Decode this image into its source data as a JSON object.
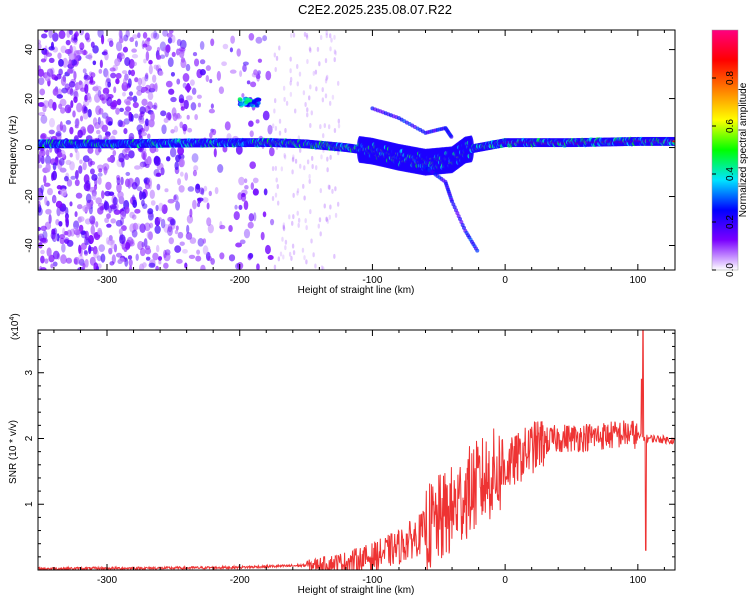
{
  "title": "C2E2.2025.235.08.07.R22",
  "chart_data": [
    {
      "type": "heatmap",
      "xlabel": "Height of straight line (km)",
      "ylabel": "Frequency (Hz)",
      "xlim": [
        -352,
        128
      ],
      "ylim": [
        -50,
        48
      ],
      "xticks": [
        -300,
        -200,
        -100,
        0,
        100
      ],
      "yticks": [
        -40,
        -20,
        0,
        20,
        40
      ],
      "colorbar": {
        "label": "Normalized spectral amplitude",
        "range": [
          0,
          1
        ],
        "ticks": [
          "0.0",
          "0.2",
          "0.4",
          "0.6",
          "0.8"
        ],
        "colors": [
          "#ffffff",
          "#7a00ff",
          "#0000ff",
          "#00e5ff",
          "#00ff00",
          "#ffff00",
          "#ff8000",
          "#ff0000",
          "#ff0080"
        ]
      },
      "features": {
        "noise_region_x": [
          -352,
          -175
        ],
        "main_band": [
          [
            -352,
            1.5
          ],
          [
            -300,
            1.5
          ],
          [
            -250,
            1.8
          ],
          [
            -200,
            2
          ],
          [
            -175,
            2
          ],
          [
            -150,
            1.5
          ],
          [
            -120,
            0
          ],
          [
            -100,
            -1.5
          ],
          [
            -80,
            -4
          ],
          [
            -60,
            -6
          ],
          [
            -40,
            -5
          ],
          [
            -30,
            -1
          ],
          [
            -10,
            1
          ],
          [
            0,
            2
          ],
          [
            50,
            2
          ],
          [
            100,
            2.5
          ],
          [
            128,
            2.5
          ]
        ],
        "upper_blob": {
          "x": [
            -200,
            -185
          ],
          "y": [
            17,
            20
          ]
        },
        "upper_branch": [
          [
            -100,
            16
          ],
          [
            -80,
            12
          ],
          [
            -60,
            6
          ],
          [
            -45,
            8
          ],
          [
            -40,
            4
          ]
        ],
        "lower_branch": [
          [
            -60,
            -8
          ],
          [
            -45,
            -14
          ],
          [
            -40,
            -22
          ],
          [
            -30,
            -34
          ],
          [
            -20,
            -43
          ]
        ]
      }
    },
    {
      "type": "line",
      "xlabel": "Height of straight line (km)",
      "ylabel": "SNR (10 * v/v)",
      "yscale_label": "(x10",
      "yscale_exp": "4",
      "xlim": [
        -352,
        128
      ],
      "ylim": [
        0,
        3.65
      ],
      "xticks": [
        -300,
        -200,
        -100,
        0,
        100
      ],
      "yticks": [
        1,
        2,
        3
      ],
      "color": "#ee3333",
      "series_envelope": [
        [
          -352,
          0.02
        ],
        [
          -250,
          0.03
        ],
        [
          -200,
          0.04
        ],
        [
          -150,
          0.07
        ],
        [
          -120,
          0.12
        ],
        [
          -100,
          0.2
        ],
        [
          -80,
          0.35
        ],
        [
          -60,
          0.6
        ],
        [
          -40,
          0.9
        ],
        [
          -30,
          1.15
        ],
        [
          -20,
          1.3
        ],
        [
          -10,
          1.45
        ],
        [
          0,
          1.55
        ],
        [
          10,
          1.7
        ],
        [
          20,
          1.85
        ],
        [
          30,
          1.95
        ],
        [
          40,
          2.0
        ],
        [
          60,
          2.02
        ],
        [
          80,
          2.05
        ],
        [
          95,
          2.08
        ],
        [
          105,
          2.0
        ],
        [
          110,
          2.0
        ],
        [
          128,
          1.97
        ]
      ],
      "spikes": [
        [
          104,
          3.65
        ],
        [
          106,
          0.3
        ],
        [
          103,
          2.9
        ]
      ]
    }
  ]
}
